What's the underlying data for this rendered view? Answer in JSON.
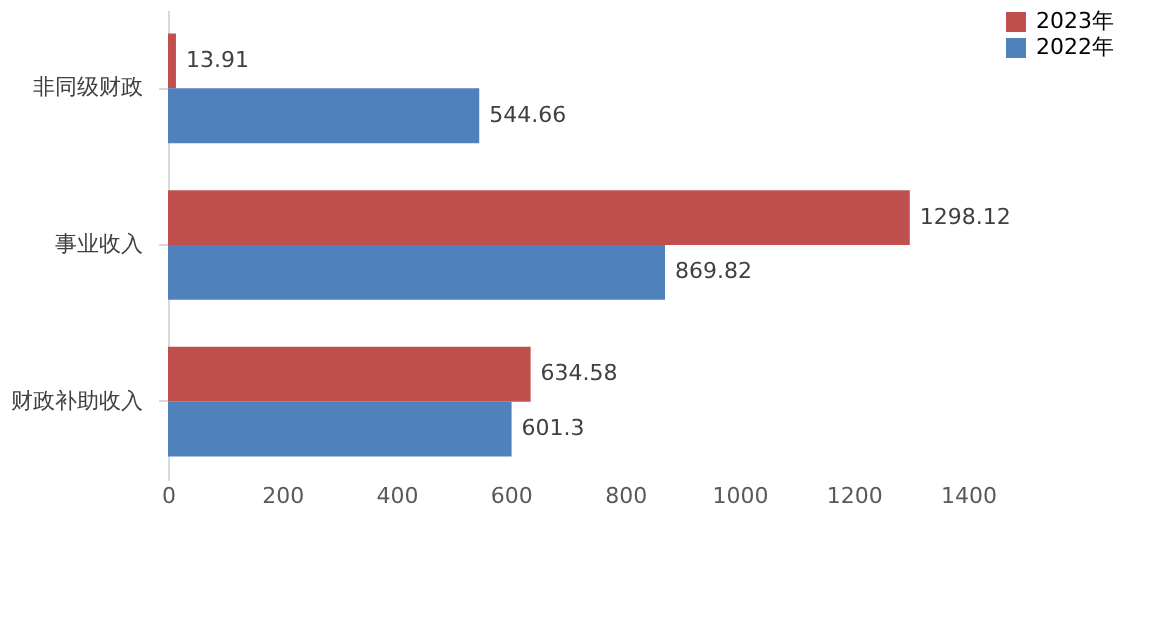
{
  "chart_data": {
    "type": "bar",
    "orientation": "horizontal",
    "categories": [
      "非同级财政",
      "事业收入",
      "财政补助收入"
    ],
    "series": [
      {
        "name": "2023年",
        "color": "#c0504d",
        "values": [
          13.91,
          1298.12,
          634.58
        ]
      },
      {
        "name": "2022年",
        "color": "#4f81bd",
        "values": [
          544.66,
          869.82,
          601.3
        ]
      }
    ],
    "xlim": [
      0,
      1400
    ],
    "xticks": [
      0,
      200,
      400,
      600,
      800,
      1000,
      1200,
      1400
    ],
    "grid": false,
    "legend": "right",
    "data_labels": true
  }
}
